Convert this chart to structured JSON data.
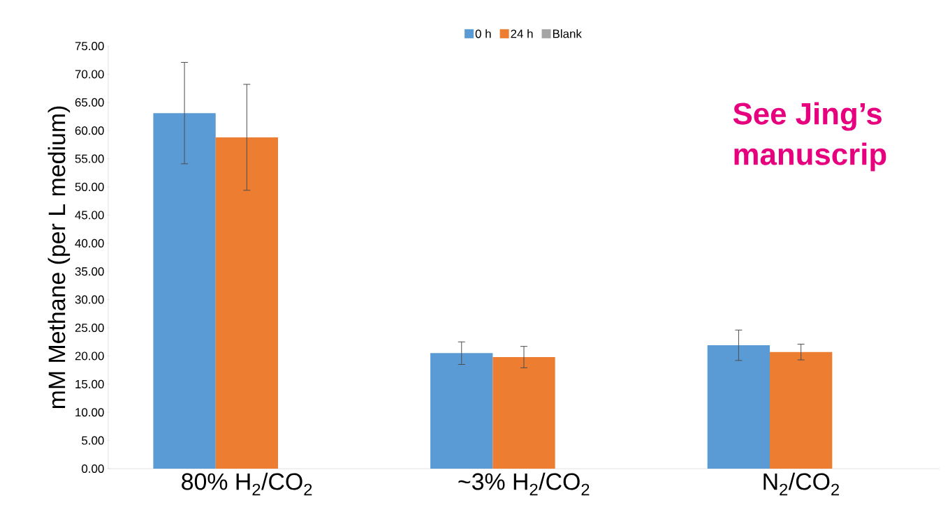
{
  "chart_data": {
    "type": "bar",
    "ylabel": "mM Methane (per L medium)",
    "categories": [
      "80% H$_{2}$/CO$_{2}$",
      "~3% H$_{2}$/CO$_{2}$",
      "N$_{2}$/CO$_{2}$"
    ],
    "series": [
      {
        "name": "0 h",
        "color": "#5b9bd5",
        "values": [
          63.1,
          20.5,
          21.9
        ],
        "errors": [
          9.0,
          2.0,
          2.7
        ]
      },
      {
        "name": "24 h",
        "color": "#ed7d31",
        "values": [
          58.8,
          19.8,
          20.7
        ],
        "errors": [
          9.4,
          1.9,
          1.4
        ]
      },
      {
        "name": "Blank",
        "color": "#a5a5a5",
        "values": [
          null,
          null,
          null
        ]
      }
    ],
    "ylim": [
      0,
      75
    ],
    "yticks": [
      {
        "value": 0,
        "label": "0.00"
      },
      {
        "value": 5,
        "label": "5.00"
      },
      {
        "value": 10,
        "label": "10.00"
      },
      {
        "value": 15,
        "label": "15.00"
      },
      {
        "value": 20,
        "label": "20.00"
      },
      {
        "value": 25,
        "label": "25.00"
      },
      {
        "value": 30,
        "label": "30.00"
      },
      {
        "value": 35,
        "label": "35.00"
      },
      {
        "value": 40,
        "label": "40.00"
      },
      {
        "value": 45,
        "label": "45.00"
      },
      {
        "value": 50,
        "label": "50.00"
      },
      {
        "value": 55,
        "label": "55.00"
      },
      {
        "value": 60,
        "label": "60.00"
      },
      {
        "value": 65,
        "label": "65.00"
      },
      {
        "value": 70,
        "label": "70.00"
      },
      {
        "value": 75,
        "label": "75.00"
      }
    ],
    "grid": false,
    "legend": "top",
    "annotations": [
      "See Jing’s",
      "manuscrip"
    ]
  }
}
